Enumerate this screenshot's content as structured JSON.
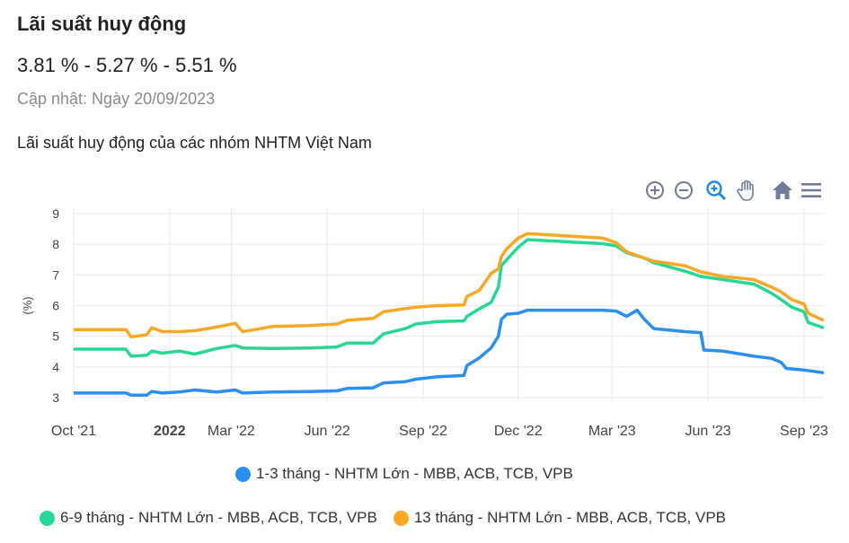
{
  "header": {
    "title": "Lãi suất huy động",
    "rates": "3.81 % - 5.27 % - 5.51 %",
    "updated": "Cập nhật: Ngày 20/09/2023",
    "subtitle": "Lãi suất huy động của các nhóm NHTM Việt Nam"
  },
  "toolbar": {
    "icons": [
      "zoom-in-icon",
      "zoom-out-icon",
      "selection-zoom-icon",
      "pan-hand-icon",
      "home-icon",
      "menu-icon"
    ]
  },
  "chart_data": {
    "type": "line",
    "ylabel": "(%)",
    "ylim": [
      2.9,
      9.2
    ],
    "yticks": [
      3,
      4,
      5,
      6,
      7,
      8,
      9
    ],
    "grid": true,
    "legend": "bottom",
    "xrange": [
      "2021-10-01",
      "2023-09-20"
    ],
    "xticks": [
      {
        "date": "2021-10-01",
        "label": "Oct '21",
        "bold": false
      },
      {
        "date": "2022-01-01",
        "label": "2022",
        "bold": true
      },
      {
        "date": "2022-03-01",
        "label": "Mar '22",
        "bold": false
      },
      {
        "date": "2022-06-01",
        "label": "Jun '22",
        "bold": false
      },
      {
        "date": "2022-09-01",
        "label": "Sep '22",
        "bold": false
      },
      {
        "date": "2022-12-01",
        "label": "Dec '22",
        "bold": false
      },
      {
        "date": "2023-03-01",
        "label": "Mar '23",
        "bold": false
      },
      {
        "date": "2023-06-01",
        "label": "Jun '23",
        "bold": false
      },
      {
        "date": "2023-09-01",
        "label": "Sep '23",
        "bold": false
      }
    ],
    "series": [
      {
        "name": "1-3 tháng - NHTM Lớn - MBB, ACB, TCB, VPB",
        "color": "#2a8ff0",
        "points": [
          [
            "2021-10-01",
            3.15
          ],
          [
            "2021-11-20",
            3.15
          ],
          [
            "2021-11-25",
            3.08
          ],
          [
            "2021-12-10",
            3.08
          ],
          [
            "2021-12-15",
            3.2
          ],
          [
            "2021-12-25",
            3.15
          ],
          [
            "2022-01-10",
            3.18
          ],
          [
            "2022-01-25",
            3.25
          ],
          [
            "2022-02-15",
            3.18
          ],
          [
            "2022-03-05",
            3.25
          ],
          [
            "2022-03-12",
            3.15
          ],
          [
            "2022-04-10",
            3.18
          ],
          [
            "2022-05-15",
            3.2
          ],
          [
            "2022-06-10",
            3.22
          ],
          [
            "2022-06-20",
            3.3
          ],
          [
            "2022-07-15",
            3.32
          ],
          [
            "2022-07-25",
            3.48
          ],
          [
            "2022-08-15",
            3.52
          ],
          [
            "2022-08-25",
            3.6
          ],
          [
            "2022-09-15",
            3.68
          ],
          [
            "2022-10-10",
            3.72
          ],
          [
            "2022-10-13",
            4.05
          ],
          [
            "2022-10-25",
            4.3
          ],
          [
            "2022-11-05",
            4.62
          ],
          [
            "2022-11-12",
            5.0
          ],
          [
            "2022-11-15",
            5.55
          ],
          [
            "2022-11-20",
            5.72
          ],
          [
            "2022-12-01",
            5.75
          ],
          [
            "2022-12-10",
            5.85
          ],
          [
            "2023-02-20",
            5.85
          ],
          [
            "2023-03-05",
            5.82
          ],
          [
            "2023-03-15",
            5.65
          ],
          [
            "2023-03-25",
            5.85
          ],
          [
            "2023-04-01",
            5.55
          ],
          [
            "2023-04-10",
            5.25
          ],
          [
            "2023-05-10",
            5.15
          ],
          [
            "2023-05-25",
            5.12
          ],
          [
            "2023-05-28",
            4.55
          ],
          [
            "2023-06-15",
            4.52
          ],
          [
            "2023-07-15",
            4.35
          ],
          [
            "2023-08-01",
            4.28
          ],
          [
            "2023-08-10",
            4.15
          ],
          [
            "2023-08-15",
            3.95
          ],
          [
            "2023-09-01",
            3.9
          ],
          [
            "2023-09-20",
            3.81
          ]
        ]
      },
      {
        "name": "6-9 tháng - NHTM Lớn - MBB, ACB, TCB, VPB",
        "color": "#27d894",
        "points": [
          [
            "2021-10-01",
            4.58
          ],
          [
            "2021-11-20",
            4.58
          ],
          [
            "2021-11-25",
            4.35
          ],
          [
            "2021-12-10",
            4.38
          ],
          [
            "2021-12-15",
            4.52
          ],
          [
            "2021-12-25",
            4.45
          ],
          [
            "2022-01-10",
            4.52
          ],
          [
            "2022-01-25",
            4.42
          ],
          [
            "2022-02-15",
            4.6
          ],
          [
            "2022-03-05",
            4.7
          ],
          [
            "2022-03-12",
            4.62
          ],
          [
            "2022-04-10",
            4.6
          ],
          [
            "2022-05-15",
            4.62
          ],
          [
            "2022-06-10",
            4.65
          ],
          [
            "2022-06-20",
            4.78
          ],
          [
            "2022-07-15",
            4.78
          ],
          [
            "2022-07-25",
            5.08
          ],
          [
            "2022-08-15",
            5.25
          ],
          [
            "2022-08-25",
            5.4
          ],
          [
            "2022-09-15",
            5.48
          ],
          [
            "2022-10-10",
            5.5
          ],
          [
            "2022-10-13",
            5.65
          ],
          [
            "2022-10-25",
            5.9
          ],
          [
            "2022-11-05",
            6.1
          ],
          [
            "2022-11-12",
            6.6
          ],
          [
            "2022-11-15",
            7.3
          ],
          [
            "2022-11-20",
            7.5
          ],
          [
            "2022-12-01",
            7.9
          ],
          [
            "2022-12-10",
            8.15
          ],
          [
            "2023-02-20",
            8.02
          ],
          [
            "2023-03-05",
            7.95
          ],
          [
            "2023-03-15",
            7.72
          ],
          [
            "2023-04-01",
            7.55
          ],
          [
            "2023-04-10",
            7.4
          ],
          [
            "2023-05-10",
            7.12
          ],
          [
            "2023-05-25",
            6.95
          ],
          [
            "2023-06-15",
            6.85
          ],
          [
            "2023-07-15",
            6.7
          ],
          [
            "2023-08-01",
            6.4
          ],
          [
            "2023-08-10",
            6.2
          ],
          [
            "2023-08-20",
            5.95
          ],
          [
            "2023-09-01",
            5.8
          ],
          [
            "2023-09-05",
            5.45
          ],
          [
            "2023-09-20",
            5.27
          ]
        ]
      },
      {
        "name": "13 tháng - NHTM Lớn - MBB, ACB, TCB, VPB",
        "color": "#f9a825",
        "points": [
          [
            "2021-10-01",
            5.22
          ],
          [
            "2021-11-20",
            5.22
          ],
          [
            "2021-11-25",
            4.98
          ],
          [
            "2021-12-10",
            5.05
          ],
          [
            "2021-12-15",
            5.28
          ],
          [
            "2021-12-25",
            5.15
          ],
          [
            "2022-01-10",
            5.15
          ],
          [
            "2022-01-25",
            5.18
          ],
          [
            "2022-02-15",
            5.3
          ],
          [
            "2022-03-05",
            5.42
          ],
          [
            "2022-03-12",
            5.15
          ],
          [
            "2022-04-10",
            5.32
          ],
          [
            "2022-05-15",
            5.35
          ],
          [
            "2022-06-10",
            5.4
          ],
          [
            "2022-06-20",
            5.52
          ],
          [
            "2022-07-15",
            5.58
          ],
          [
            "2022-07-25",
            5.8
          ],
          [
            "2022-08-15",
            5.9
          ],
          [
            "2022-08-25",
            5.95
          ],
          [
            "2022-09-15",
            6.0
          ],
          [
            "2022-10-10",
            6.02
          ],
          [
            "2022-10-13",
            6.3
          ],
          [
            "2022-10-25",
            6.5
          ],
          [
            "2022-11-05",
            7.05
          ],
          [
            "2022-11-12",
            7.2
          ],
          [
            "2022-11-15",
            7.6
          ],
          [
            "2022-11-20",
            7.85
          ],
          [
            "2022-12-01",
            8.2
          ],
          [
            "2022-12-10",
            8.35
          ],
          [
            "2023-02-20",
            8.2
          ],
          [
            "2023-03-05",
            8.05
          ],
          [
            "2023-03-15",
            7.75
          ],
          [
            "2023-04-01",
            7.55
          ],
          [
            "2023-04-10",
            7.45
          ],
          [
            "2023-05-10",
            7.3
          ],
          [
            "2023-05-25",
            7.1
          ],
          [
            "2023-06-15",
            6.95
          ],
          [
            "2023-07-15",
            6.85
          ],
          [
            "2023-08-01",
            6.6
          ],
          [
            "2023-08-10",
            6.45
          ],
          [
            "2023-08-20",
            6.2
          ],
          [
            "2023-09-01",
            6.05
          ],
          [
            "2023-09-05",
            5.75
          ],
          [
            "2023-09-20",
            5.51
          ]
        ]
      }
    ]
  }
}
